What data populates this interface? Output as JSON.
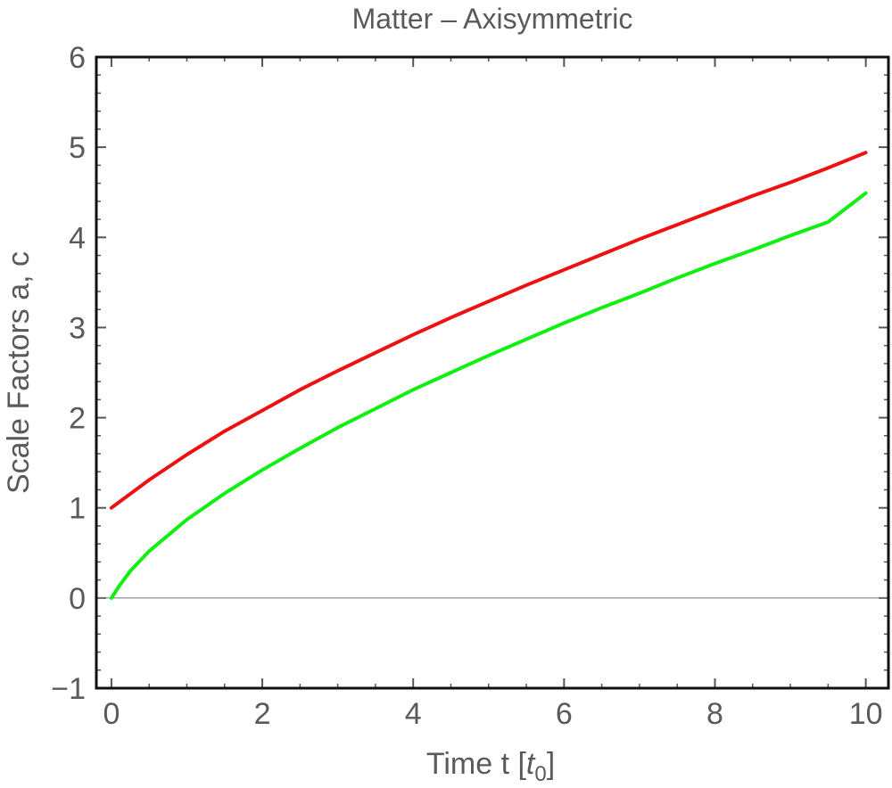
{
  "chart_data": {
    "type": "line",
    "title": "Matter – Axisymmetric",
    "xlabel": {
      "prefix": "Time  t [",
      "var": "t",
      "sub": "0",
      "suffix": "]"
    },
    "ylabel": "Scale Factors  a, c",
    "xlim": [
      -0.2,
      10.3
    ],
    "ylim": [
      -1,
      6
    ],
    "xticks": [
      0,
      2,
      4,
      6,
      8,
      10
    ],
    "xtick_labels": [
      "0",
      "2",
      "4",
      "6",
      "8",
      "10"
    ],
    "yticks": [
      -1,
      0,
      1,
      2,
      3,
      4,
      5,
      6
    ],
    "ytick_labels": [
      "−1",
      "0",
      "1",
      "2",
      "3",
      "4",
      "5",
      "6"
    ],
    "grid": false,
    "zero_line": true,
    "series": [
      {
        "color": "#ee1111",
        "x": [
          0,
          0.5,
          1,
          1.5,
          2,
          2.5,
          3,
          3.5,
          4,
          4.5,
          5,
          5.5,
          6,
          6.5,
          7,
          7.5,
          8,
          8.5,
          9,
          9.5,
          10
        ],
        "y": [
          1.0,
          1.31,
          1.59,
          1.85,
          2.08,
          2.31,
          2.52,
          2.72,
          2.92,
          3.11,
          3.29,
          3.47,
          3.64,
          3.81,
          3.98,
          4.14,
          4.3,
          4.46,
          4.61,
          4.77,
          4.94
        ]
      },
      {
        "color": "#11ee11",
        "x": [
          0,
          0.1,
          0.25,
          0.5,
          1,
          1.5,
          2,
          2.5,
          3,
          3.5,
          4,
          4.5,
          5,
          5.5,
          6,
          6.5,
          7,
          7.5,
          8,
          8.5,
          9,
          9.5,
          10
        ],
        "y": [
          0.0,
          0.13,
          0.3,
          0.52,
          0.87,
          1.16,
          1.42,
          1.66,
          1.89,
          2.1,
          2.31,
          2.5,
          2.69,
          2.87,
          3.05,
          3.22,
          3.38,
          3.55,
          3.71,
          3.86,
          4.02,
          4.17,
          4.49
        ]
      }
    ]
  }
}
